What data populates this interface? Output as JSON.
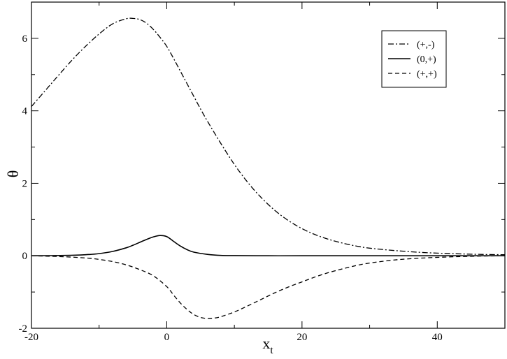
{
  "chart_data": {
    "type": "line",
    "title": "",
    "xlabel": "x",
    "xlabel_subscript": "t",
    "ylabel": "θ",
    "xlim": [
      -20,
      50
    ],
    "ylim": [
      -2,
      7
    ],
    "xticks": [
      -20,
      0,
      20,
      40
    ],
    "xtick_labels": [
      "-20",
      "0",
      "20",
      "40"
    ],
    "yticks": [
      -2,
      0,
      2,
      4,
      6
    ],
    "ytick_labels": [
      "-2",
      "0",
      "2",
      "4",
      "6"
    ],
    "grid": false,
    "legend_position": "top-right",
    "series": [
      {
        "name": "(+,-)",
        "style": "dashdot",
        "x": [
          -20,
          -18,
          -16,
          -14,
          -12,
          -10,
          -8,
          -6,
          -5,
          -4,
          -3,
          -2,
          -1,
          0,
          1,
          2,
          3,
          4,
          5,
          6,
          8,
          10,
          12,
          14,
          16,
          18,
          20,
          22,
          24,
          26,
          28,
          30,
          34,
          38,
          42,
          46,
          50
        ],
        "y": [
          4.12,
          4.55,
          4.98,
          5.4,
          5.78,
          6.12,
          6.4,
          6.54,
          6.55,
          6.52,
          6.42,
          6.25,
          6.03,
          5.78,
          5.45,
          5.1,
          4.75,
          4.4,
          4.05,
          3.72,
          3.1,
          2.52,
          2.02,
          1.6,
          1.25,
          0.97,
          0.75,
          0.58,
          0.45,
          0.35,
          0.27,
          0.21,
          0.14,
          0.09,
          0.06,
          0.04,
          0.03
        ]
      },
      {
        "name": "(0,+)",
        "style": "solid",
        "x": [
          -20,
          -15,
          -12,
          -10,
          -8,
          -6,
          -5,
          -4,
          -3,
          -2,
          -1,
          0,
          1,
          2,
          3,
          4,
          6,
          8,
          10,
          15,
          20,
          30,
          40,
          50
        ],
        "y": [
          0.0,
          0.01,
          0.03,
          0.06,
          0.12,
          0.22,
          0.29,
          0.37,
          0.45,
          0.52,
          0.56,
          0.53,
          0.4,
          0.27,
          0.17,
          0.1,
          0.04,
          0.01,
          0.005,
          0.0,
          0.0,
          0.0,
          0.0,
          0.0
        ]
      },
      {
        "name": "(+,+)",
        "style": "dashed",
        "x": [
          -20,
          -16,
          -12,
          -10,
          -8,
          -6,
          -4,
          -2,
          0,
          1,
          2,
          3,
          4,
          5,
          6,
          7,
          8,
          10,
          12,
          14,
          16,
          18,
          20,
          22,
          24,
          26,
          28,
          30,
          34,
          38,
          42,
          46,
          50
        ],
        "y": [
          0.0,
          -0.02,
          -0.06,
          -0.1,
          -0.16,
          -0.25,
          -0.38,
          -0.55,
          -0.85,
          -1.08,
          -1.3,
          -1.48,
          -1.62,
          -1.7,
          -1.73,
          -1.72,
          -1.68,
          -1.55,
          -1.38,
          -1.2,
          -1.02,
          -0.86,
          -0.72,
          -0.58,
          -0.46,
          -0.36,
          -0.27,
          -0.2,
          -0.11,
          -0.06,
          -0.03,
          -0.01,
          0.0
        ]
      }
    ]
  }
}
